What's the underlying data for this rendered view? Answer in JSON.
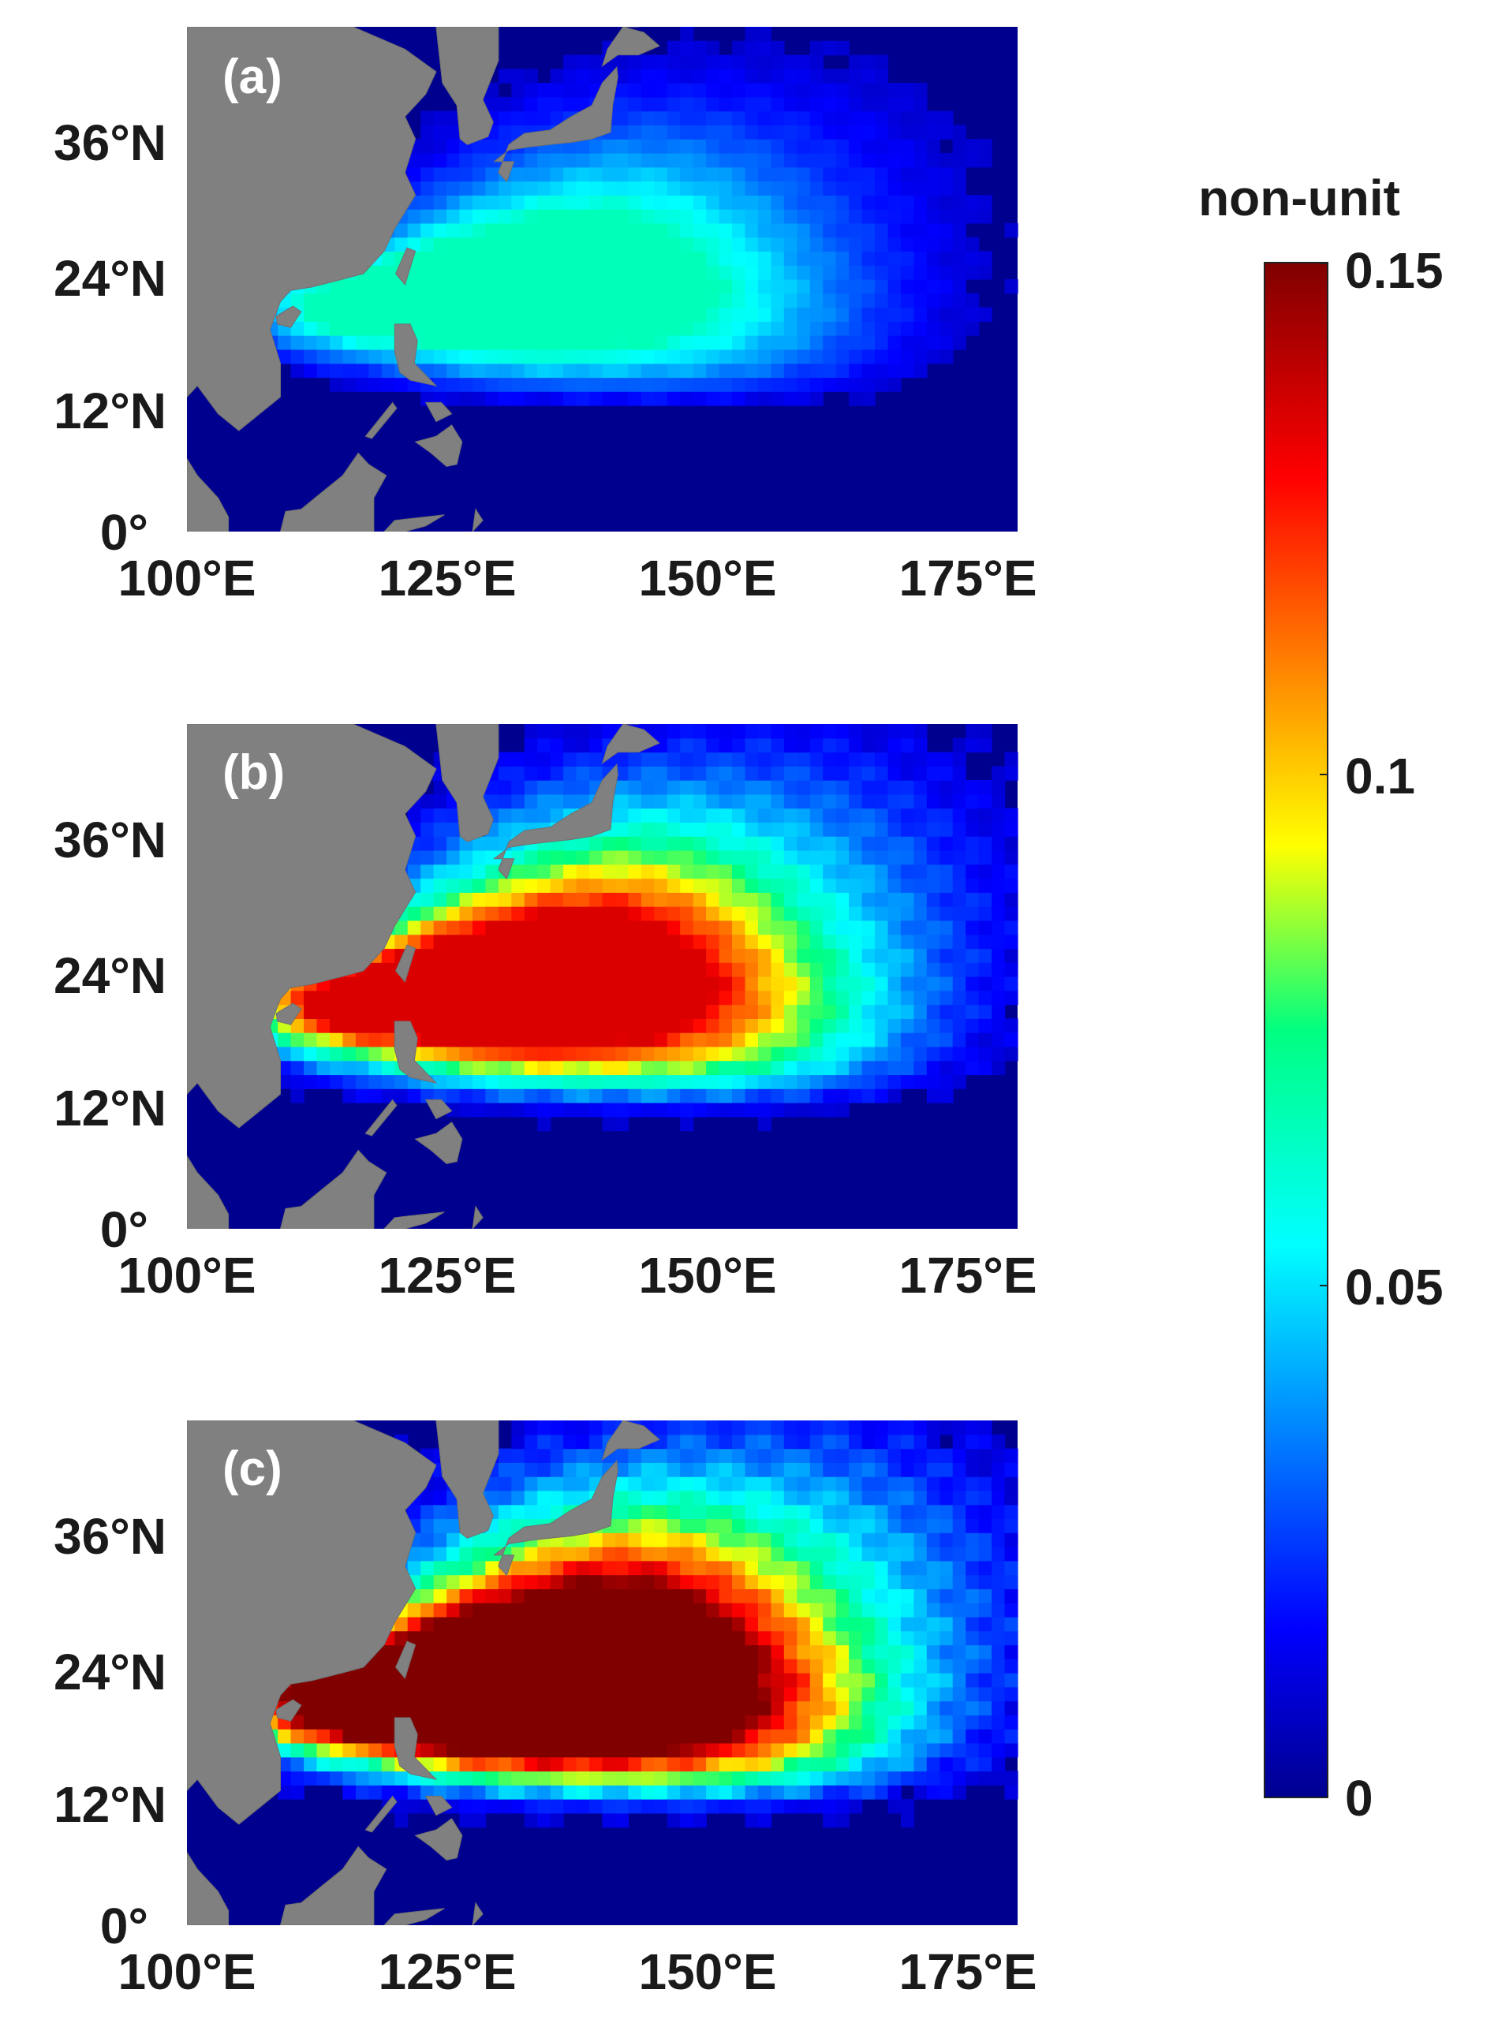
{
  "figure": {
    "panels": [
      {
        "label": "(a)",
        "intensity": 0.35
      },
      {
        "label": "(b)",
        "intensity": 0.72
      },
      {
        "label": "(c)",
        "intensity": 1.0
      }
    ],
    "lat_ticks": [
      "36°N",
      "24°N",
      "12°N",
      "0°"
    ],
    "lon_ticks": [
      "100°E",
      "125°E",
      "150°E",
      "175°E"
    ],
    "lat_values": [
      36,
      24,
      12,
      0
    ],
    "lon_values": [
      100,
      125,
      150,
      175
    ],
    "extent": {
      "lon": [
        100,
        180
      ],
      "lat": [
        0,
        45
      ]
    },
    "colorbar": {
      "title": "non-unit",
      "ticks": [
        "0.15",
        "0.1",
        "0.05",
        "0"
      ],
      "tick_values": [
        0.15,
        0.1,
        0.05,
        0
      ],
      "range": [
        0,
        0.15
      ],
      "colormap": "jet"
    },
    "colors": {
      "land": "#808080",
      "low": "#00008f",
      "high": "#800000"
    }
  }
}
